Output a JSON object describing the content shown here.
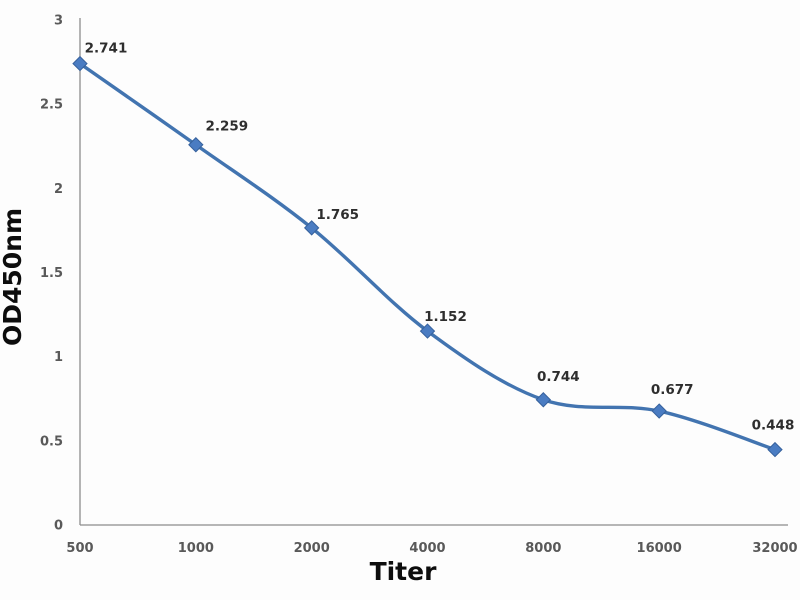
{
  "chart_data": {
    "type": "line",
    "xlabel": "Titer",
    "ylabel": "OD450nm",
    "categories": [
      "500",
      "1000",
      "2000",
      "4000",
      "8000",
      "16000",
      "32000"
    ],
    "series": [
      {
        "name": "OD450nm",
        "values": [
          2.741,
          2.259,
          1.765,
          1.152,
          0.744,
          0.677,
          0.448
        ],
        "point_labels": [
          "2.741",
          "2.259",
          "1.765",
          "1.152",
          "0.744",
          "0.677",
          "0.448"
        ]
      }
    ],
    "ylim": [
      0,
      3
    ],
    "yticks": [
      0,
      0.5,
      1,
      1.5,
      2,
      2.5,
      3
    ],
    "ytick_labels": [
      "0",
      "0.5",
      "1",
      "1.5",
      "2",
      "2.5",
      "3"
    ],
    "grid": "off",
    "legend": "none",
    "line_style": "smooth",
    "marker": "diamond",
    "colors": {
      "line": "#4274b0",
      "marker_fill": "#4a7cc2",
      "marker_stroke": "#36619c",
      "axis": "#8d8d8d",
      "tick_text": "#595959",
      "point_label_text": "#2e2e2e",
      "axis_title_text": "#0d0d0d",
      "background": "#fdfdfd"
    }
  }
}
